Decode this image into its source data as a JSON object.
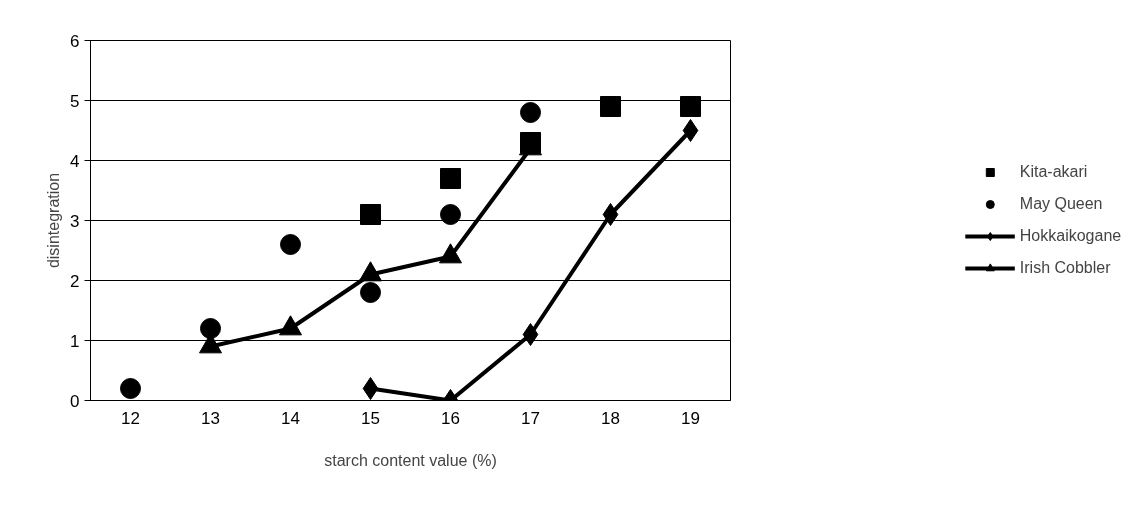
{
  "chart_data": {
    "type": "line",
    "xlabel": "starch content value (%)",
    "ylabel": "disintegration",
    "categories": [
      "12",
      "13",
      "14",
      "15",
      "16",
      "17",
      "18",
      "19"
    ],
    "ylim": [
      0,
      6
    ],
    "yticks": [
      0,
      1,
      2,
      3,
      4,
      5,
      6
    ],
    "grid": "y",
    "legend": "right",
    "series": [
      {
        "name": "Kita-akari",
        "type": "scatter",
        "marker": "square",
        "color": "#000000",
        "values": [
          null,
          null,
          null,
          3.1,
          3.7,
          4.3,
          4.9,
          4.9
        ]
      },
      {
        "name": "May Queen",
        "type": "scatter",
        "marker": "circle",
        "color": "#000000",
        "values": [
          0.2,
          1.2,
          2.6,
          1.8,
          3.1,
          4.8,
          null,
          null
        ]
      },
      {
        "name": "Hokkaikogane",
        "marker": "diamond",
        "color": "#000000",
        "values": [
          null,
          null,
          null,
          0.2,
          0,
          1.1,
          3.1,
          4.5
        ]
      },
      {
        "name": "Irish Cobbler",
        "marker": "triangle",
        "color": "#000000",
        "values": [
          null,
          0.9,
          1.2,
          2.1,
          2.4,
          4.2,
          null,
          null
        ]
      }
    ]
  }
}
